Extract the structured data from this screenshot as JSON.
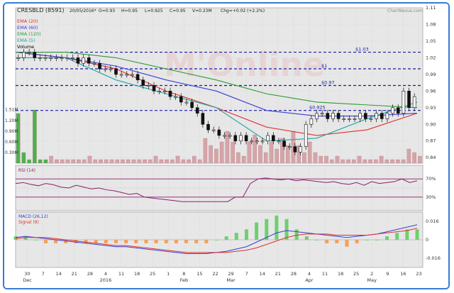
{
  "header": {
    "ticker": "CRESBLD (8591)",
    "date": "20/05/2016*",
    "open": "O=0.93",
    "high": "H=0.95",
    "low": "L=0.925",
    "close": "C=0.95",
    "volume": "V=0.23M",
    "change": "Chg=+0.02 (+2.2%)",
    "source": "ChartNexus.com"
  },
  "watermark": "M'Online",
  "legend": [
    {
      "label": "EMA (20)",
      "color": "#e0302c"
    },
    {
      "label": "EMA (60)",
      "color": "#3b3bd6"
    },
    {
      "label": "EMA (120)",
      "color": "#2e9b3a"
    },
    {
      "label": "EMA (5)",
      "color": "#20a6a6"
    },
    {
      "label": "Volume",
      "color": "#000000"
    }
  ],
  "x_ticks": [
    "30",
    "7",
    "14",
    "21",
    "28",
    "4",
    "11",
    "18",
    "25",
    "1",
    "8",
    "15",
    "22",
    "29",
    "7",
    "14",
    "21",
    "28",
    "4",
    "11",
    "18",
    "25",
    "2",
    "9",
    "16",
    "23"
  ],
  "month_labels": [
    "Dec",
    "2016",
    "Feb",
    "Mar",
    "Apr",
    "May"
  ],
  "price_axis": [
    "1.11",
    "1.08",
    "1.05",
    "1.02",
    "0.99",
    "0.96",
    "0.93",
    "0.90",
    "0.87",
    "0.84"
  ],
  "volume_axis": [
    "1.51M",
    "1.20M",
    "0.90M",
    "0.60M",
    "0.30M"
  ],
  "levels": [
    {
      "label": "$1.03",
      "price": 1.03
    },
    {
      "label": "$1",
      "price": 1.0
    },
    {
      "label": "$0.97",
      "price": 0.97
    },
    {
      "label": "$0.925",
      "price": 0.925
    }
  ],
  "rsi": {
    "title": "RSI (14)",
    "levels": [
      "70%",
      "30%"
    ]
  },
  "macd": {
    "title": "MACD (26,12)",
    "signal_title": "Signal (9)",
    "axis": [
      "0.016",
      "0",
      "-0.016"
    ]
  },
  "chart_data": [
    {
      "type": "candlestick",
      "title": "CRESBLD (8591)",
      "ylim": [
        0.83,
        1.11
      ],
      "closes": [
        1.02,
        1.03,
        1.03,
        1.02,
        1.02,
        1.02,
        1.02,
        1.02,
        1.02,
        1.02,
        1.02,
        1.01,
        1.02,
        1.01,
        1.01,
        1.0,
        1.0,
        1.0,
        0.99,
        0.99,
        0.99,
        0.99,
        0.98,
        0.97,
        0.97,
        0.96,
        0.96,
        0.96,
        0.95,
        0.95,
        0.94,
        0.94,
        0.93,
        0.92,
        0.9,
        0.89,
        0.89,
        0.88,
        0.88,
        0.88,
        0.87,
        0.88,
        0.87,
        0.87,
        0.87,
        0.87,
        0.88,
        0.87,
        0.87,
        0.86,
        0.86,
        0.85,
        0.86,
        0.9,
        0.91,
        0.92,
        0.92,
        0.91,
        0.92,
        0.91,
        0.91,
        0.91,
        0.91,
        0.92,
        0.91,
        0.91,
        0.92,
        0.91,
        0.92,
        0.93,
        0.92,
        0.96,
        0.93,
        0.95
      ],
      "series": [
        {
          "name": "EMA (20)",
          "values": [
            1.03,
            1.02,
            1.0,
            0.96,
            0.93,
            0.895,
            0.88,
            0.89,
            0.92
          ]
        },
        {
          "name": "EMA (60)",
          "values": [
            1.03,
            1.02,
            1.005,
            0.98,
            0.96,
            0.925,
            0.915,
            0.915,
            0.92
          ]
        },
        {
          "name": "EMA (120)",
          "values": [
            1.03,
            1.03,
            1.02,
            1.0,
            0.98,
            0.955,
            0.94,
            0.935,
            0.93
          ]
        },
        {
          "name": "EMA (5)",
          "values": [
            1.02,
            1.02,
            0.98,
            0.955,
            0.93,
            0.87,
            0.875,
            0.91,
            0.94
          ]
        }
      ]
    },
    {
      "type": "bar",
      "title": "Volume",
      "ylim": [
        0,
        1.6
      ],
      "values": [
        1.4,
        0.3,
        0.1,
        1.5,
        0.1,
        0.1,
        0.2,
        0.1,
        0.1,
        0.1,
        0.1,
        0.1,
        0.1,
        0.2,
        0.1,
        0.1,
        0.1,
        0.1,
        0.1,
        0.1,
        0.1,
        0.1,
        0.1,
        0.1,
        0.1,
        0.2,
        0.1,
        0.1,
        0.1,
        0.2,
        0.1,
        0.1,
        0.2,
        0.1,
        0.7,
        0.5,
        0.4,
        0.6,
        0.9,
        0.6,
        0.3,
        0.2,
        0.6,
        0.8,
        0.5,
        0.3,
        0.6,
        0.4,
        0.7,
        0.5,
        0.9,
        0.5,
        0.3,
        0.6,
        0.3,
        0.2,
        0.2,
        0.1,
        0.2,
        0.1,
        0.1,
        0.1,
        0.2,
        0.1,
        0.1,
        0.1,
        0.2,
        0.1,
        0.1,
        0.1,
        0.1,
        0.4,
        0.3,
        0.2
      ]
    },
    {
      "type": "line",
      "title": "RSI (14)",
      "ylim": [
        0,
        100
      ],
      "values": [
        60,
        62,
        58,
        55,
        60,
        57,
        52,
        50,
        56,
        52,
        48,
        50,
        46,
        44,
        40,
        36,
        38,
        30,
        28,
        26,
        24,
        22,
        20,
        20,
        20,
        20,
        20,
        20,
        20,
        30,
        30,
        60,
        70,
        72,
        70,
        68,
        70,
        66,
        68,
        66,
        64,
        62,
        64,
        60,
        58,
        62,
        56,
        64,
        60,
        62,
        64,
        70,
        62,
        66
      ]
    },
    {
      "type": "line",
      "title": "MACD (26,12)",
      "ylim": [
        -0.024,
        0.024
      ],
      "series": [
        {
          "name": "MACD (26,12)",
          "values": [
            0.002,
            0.003,
            0.002,
            0.001,
            0.0,
            -0.001,
            -0.002,
            -0.003,
            -0.004,
            -0.005,
            -0.006,
            -0.006,
            -0.007,
            -0.008,
            -0.009,
            -0.01,
            -0.011,
            -0.012,
            -0.012,
            -0.012,
            -0.011,
            -0.01,
            -0.008,
            -0.006,
            -0.002,
            0.002,
            0.006,
            0.008,
            0.007,
            0.006,
            0.005,
            0.004,
            0.003,
            0.002,
            0.003,
            0.004,
            0.005,
            0.007,
            0.009,
            0.011,
            0.013
          ]
        },
        {
          "name": "Signal (9)",
          "values": [
            0.001,
            0.002,
            0.002,
            0.002,
            0.001,
            0.0,
            -0.001,
            -0.002,
            -0.003,
            -0.004,
            -0.005,
            -0.005,
            -0.006,
            -0.007,
            -0.008,
            -0.009,
            -0.01,
            -0.011,
            -0.011,
            -0.011,
            -0.011,
            -0.011,
            -0.01,
            -0.009,
            -0.007,
            -0.004,
            -0.001,
            0.002,
            0.004,
            0.005,
            0.005,
            0.005,
            0.004,
            0.004,
            0.004,
            0.004,
            0.005,
            0.006,
            0.007,
            0.008,
            0.01
          ]
        }
      ]
    }
  ]
}
